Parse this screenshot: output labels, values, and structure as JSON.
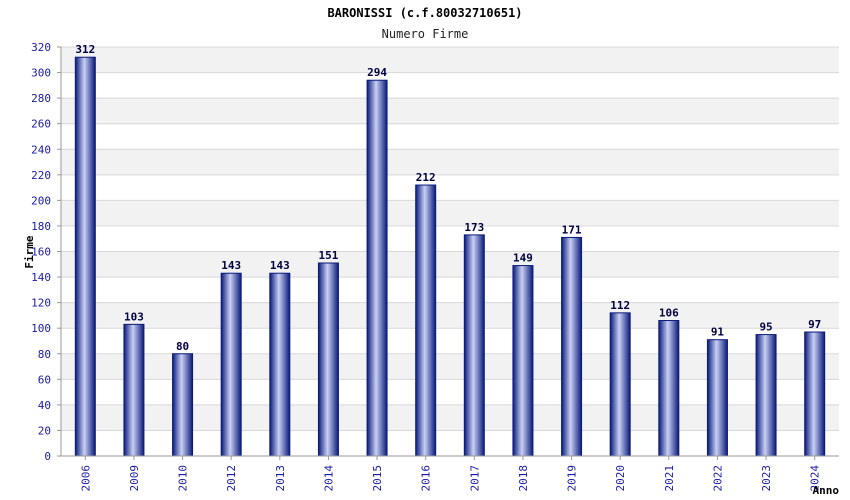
{
  "chart_data": {
    "type": "bar",
    "title": "BARONISSI (c.f.80032710651)",
    "subtitle": "Numero Firme",
    "xlabel": "Anno",
    "ylabel": "Firme",
    "categories": [
      "2006",
      "2009",
      "2010",
      "2012",
      "2013",
      "2014",
      "2015",
      "2016",
      "2017",
      "2018",
      "2019",
      "2020",
      "2021",
      "2022",
      "2023",
      "2024"
    ],
    "values": [
      312,
      103,
      80,
      143,
      143,
      151,
      294,
      212,
      173,
      149,
      171,
      112,
      106,
      91,
      95,
      97
    ],
    "ylim": [
      0,
      320
    ],
    "ytick_step": 20,
    "grid": true,
    "legend": "none",
    "colors": {
      "bar_dark": "#0a1a7a",
      "bar_light": "#c8d0f4",
      "band_alt": "#f2f2f2",
      "grid": "#d8d8d8",
      "tick_text": "#1a1aa8"
    }
  }
}
